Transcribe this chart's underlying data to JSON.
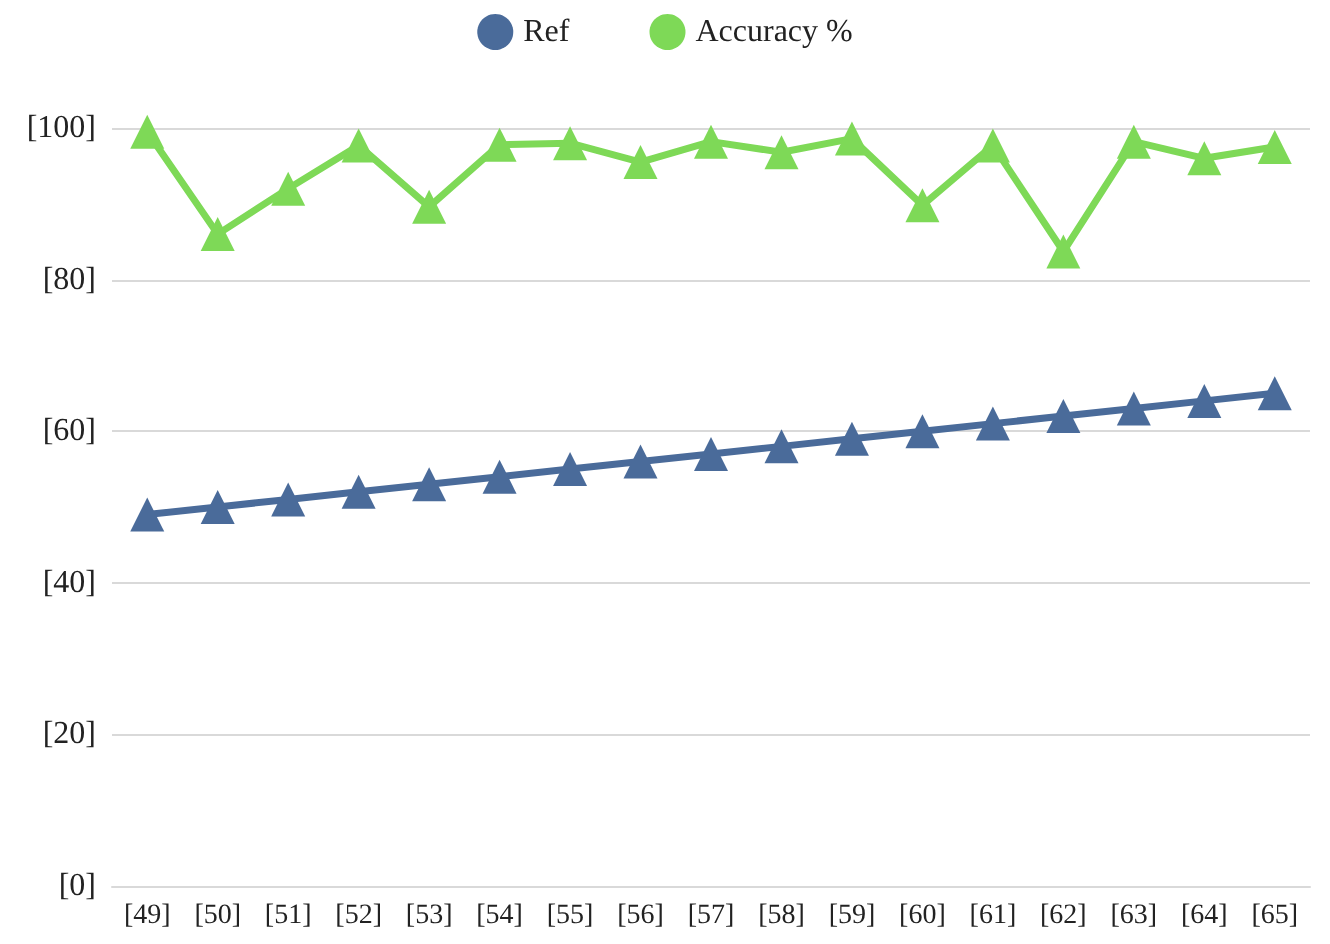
{
  "chart_data": {
    "type": "line",
    "categories": [
      "[49]",
      "[50]",
      "[51]",
      "[52]",
      "[53]",
      "[54]",
      "[55]",
      "[56]",
      "[57]",
      "[58]",
      "[59]",
      "[60]",
      "[61]",
      "[62]",
      "[63]",
      "[64]",
      "[65]"
    ],
    "series": [
      {
        "name": "Ref",
        "color": "#4a6b9a",
        "values": [
          49,
          50,
          51,
          52,
          53,
          54,
          55,
          56,
          57,
          58,
          59,
          60,
          61,
          62,
          63,
          64,
          65
        ]
      },
      {
        "name": "Accuracy %",
        "color": "#7ed957",
        "values": [
          99.5,
          86,
          92,
          97.7,
          89.6,
          97.8,
          98,
          95.5,
          98.2,
          96.8,
          98.6,
          89.8,
          97.7,
          83.7,
          98.2,
          96,
          97.5
        ]
      }
    ],
    "ylim": [
      0,
      100
    ],
    "yticks": [
      {
        "value": 0,
        "label": "[0]"
      },
      {
        "value": 20,
        "label": "[20]"
      },
      {
        "value": 40,
        "label": "[40]"
      },
      {
        "value": 60,
        "label": "[60]"
      },
      {
        "value": 80,
        "label": "[80]"
      },
      {
        "value": 100,
        "label": "[100]"
      }
    ],
    "grid": "y",
    "legend": "top",
    "marker": "triangle",
    "line_style": "solid"
  }
}
